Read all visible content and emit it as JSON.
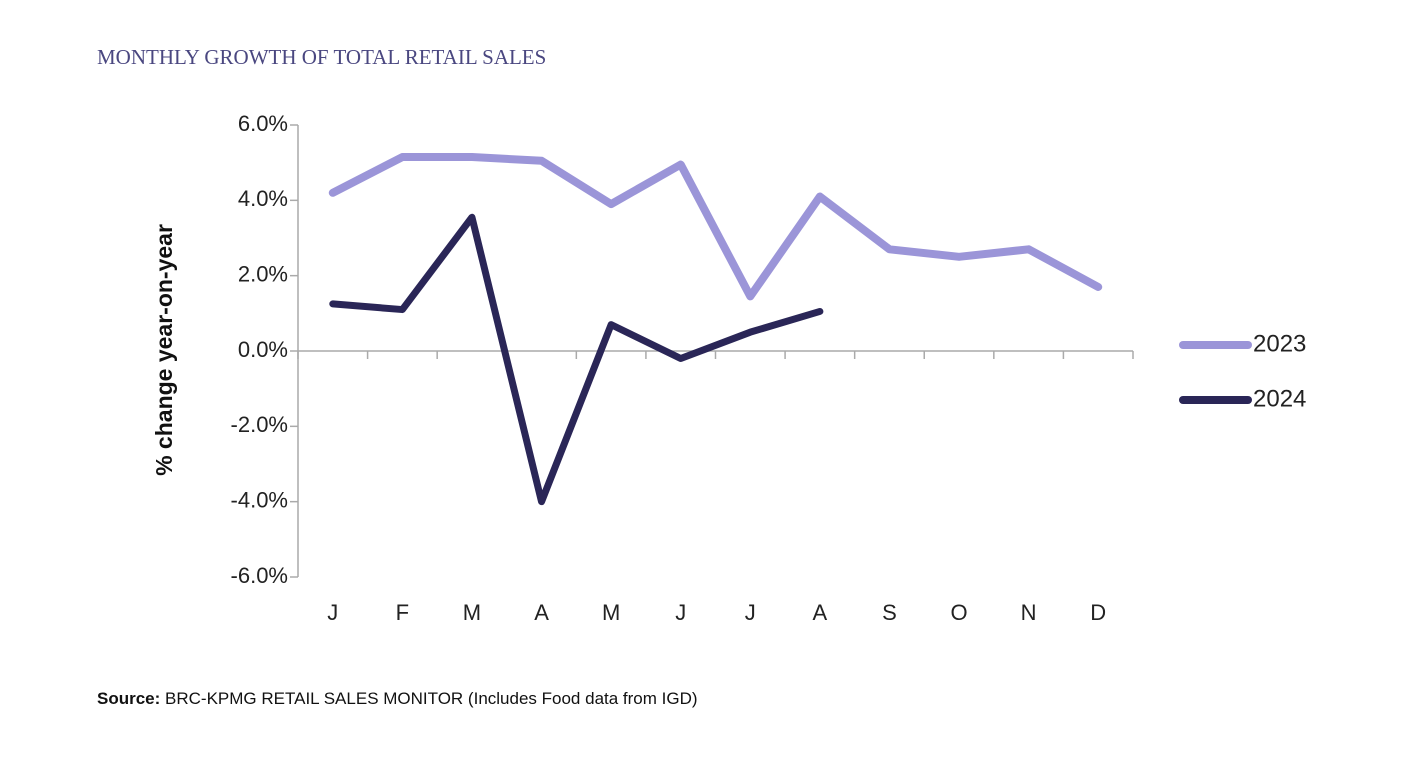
{
  "chart_data": {
    "type": "line",
    "title": "MONTHLY GROWTH OF TOTAL RETAIL SALES",
    "y_label": "% change year-on-year",
    "categories": [
      "J",
      "F",
      "M",
      "A",
      "M",
      "J",
      "J",
      "A",
      "S",
      "O",
      "N",
      "D"
    ],
    "series": [
      {
        "name": "2023",
        "color": "#9b95d8",
        "values": [
          4.2,
          5.15,
          5.15,
          5.05,
          3.9,
          4.95,
          1.45,
          4.1,
          2.7,
          2.5,
          2.7,
          1.7
        ]
      },
      {
        "name": "2024",
        "color": "#2a2657",
        "values": [
          1.25,
          1.1,
          3.55,
          -4.0,
          0.7,
          -0.2,
          0.5,
          1.05,
          null,
          null,
          null,
          null
        ]
      }
    ],
    "ylim": [
      -6,
      6
    ],
    "yticks": [
      {
        "value": -6,
        "label": "-6.0%"
      },
      {
        "value": -4,
        "label": "-4.0%"
      },
      {
        "value": -2,
        "label": "-2.0%"
      },
      {
        "value": 0,
        "label": "0.0%"
      },
      {
        "value": 2,
        "label": "2.0%"
      },
      {
        "value": 4,
        "label": "4.0%"
      },
      {
        "value": 6,
        "label": "6.0%"
      }
    ],
    "legend": "right",
    "source_label": "Source:",
    "source": "BRC-KPMG RETAIL SALES MONITOR (Includes Food data from IGD)"
  }
}
